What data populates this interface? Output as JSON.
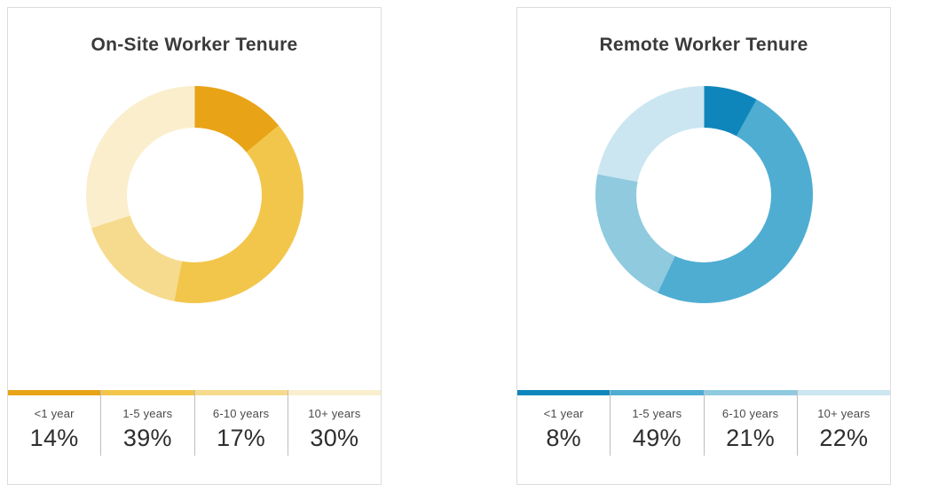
{
  "chart_data": [
    {
      "type": "pie",
      "subtype": "donut",
      "title": "On-Site Worker Tenure",
      "categories": [
        "<1 year",
        "1-5 years",
        "6-10 years",
        "10+ years"
      ],
      "values": [
        14,
        39,
        17,
        30
      ],
      "value_labels": [
        "14%",
        "39%",
        "17%",
        "30%"
      ],
      "colors": [
        "#E8A317",
        "#F2C64B",
        "#F6DB8E",
        "#FAEECD"
      ],
      "start_angle_deg": 0,
      "direction": "clockwise",
      "legend_position": "bottom"
    },
    {
      "type": "pie",
      "subtype": "donut",
      "title": "Remote Worker Tenure",
      "categories": [
        "<1 year",
        "1-5 years",
        "6-10 years",
        "10+ years"
      ],
      "values": [
        8,
        49,
        21,
        22
      ],
      "value_labels": [
        "8%",
        "49%",
        "21%",
        "22%"
      ],
      "colors": [
        "#0F86BB",
        "#4FADD2",
        "#8FCADF",
        "#CBE6F1"
      ],
      "start_angle_deg": 0,
      "direction": "clockwise",
      "legend_position": "bottom"
    }
  ]
}
